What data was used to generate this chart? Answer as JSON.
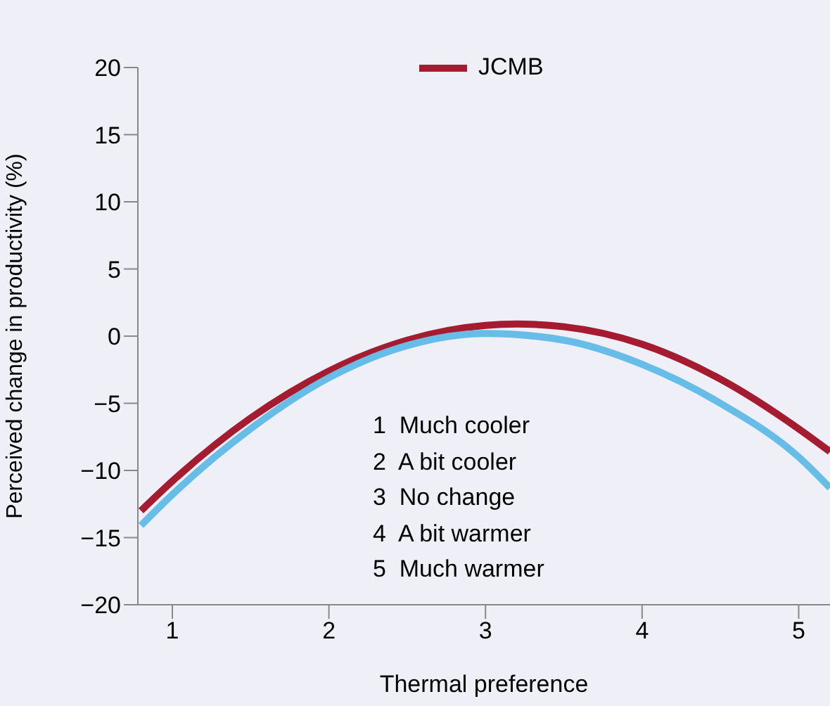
{
  "chart_data": {
    "type": "line",
    "xlabel": "Thermal preference",
    "ylabel": "Perceived change in productivity (%)",
    "xlim": [
      0.78,
      5.2
    ],
    "xticks": [
      1,
      2,
      3,
      4,
      5
    ],
    "ylim": [
      -20,
      20
    ],
    "yticks": [
      -20,
      -15,
      -10,
      -5,
      0,
      5,
      10,
      15,
      20
    ],
    "legend": "top",
    "marker": "none",
    "line_style": "solid",
    "series": [
      {
        "name": "JCMB",
        "color": "#a51c30",
        "x": [
          0.8,
          1,
          1.5,
          2,
          2.5,
          3,
          3.2,
          3.5,
          4,
          4.5,
          5,
          5.2
        ],
        "values": [
          -13,
          -10.8,
          -6.1,
          -2.6,
          -0.3,
          0.8,
          0.9,
          0.7,
          -0.6,
          -3.2,
          -6.9,
          -8.6
        ]
      },
      {
        "color": "#66bde8",
        "x": [
          0.8,
          1,
          1.5,
          2,
          2.5,
          3,
          3.5,
          4,
          4.5,
          5,
          5.2
        ],
        "values": [
          -14.1,
          -11.8,
          -6.9,
          -3.1,
          -0.7,
          0.2,
          -0.3,
          -2.1,
          -5,
          -9,
          -11.3
        ]
      }
    ],
    "annotations": [
      "1  Much cooler",
      "2  A bit cooler",
      "3  No change",
      "4  A bit warmer",
      "5  Much warmer"
    ]
  }
}
